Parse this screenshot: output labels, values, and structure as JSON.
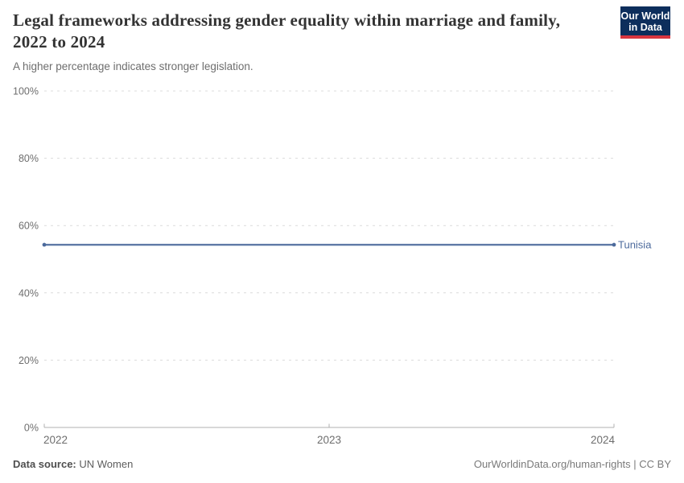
{
  "header": {
    "title": "Legal frameworks addressing gender equality within marriage and family, 2022 to 2024",
    "subtitle": "A higher percentage indicates stronger legislation."
  },
  "logo": {
    "line1": "Our World",
    "line2": "in Data",
    "bg_color": "#0d2e5c",
    "accent_color": "#d8353f",
    "text_color": "#ffffff"
  },
  "chart_data": {
    "type": "line",
    "title": "Legal frameworks addressing gender equality within marriage and family, 2022 to 2024",
    "x": [
      2022,
      2023,
      2024
    ],
    "xticks": [
      2022,
      2023,
      2024
    ],
    "series": [
      {
        "name": "Tunisia",
        "values": [
          54.3,
          54.3,
          54.3
        ],
        "color": "#4C6A9C"
      }
    ],
    "ylim": [
      0,
      100
    ],
    "yticks": [
      0,
      20,
      40,
      60,
      80,
      100
    ],
    "ytick_suffix": "%",
    "grid": true,
    "legend_position": "end-of-line",
    "colors": {
      "grid": "#dcdcdc",
      "axis": "#b0b0b0",
      "tick_label": "#6e6e6e"
    }
  },
  "footer": {
    "source_label": "Data source:",
    "source_value": "UN Women",
    "credit": "OurWorldinData.org/human-rights | CC BY"
  }
}
